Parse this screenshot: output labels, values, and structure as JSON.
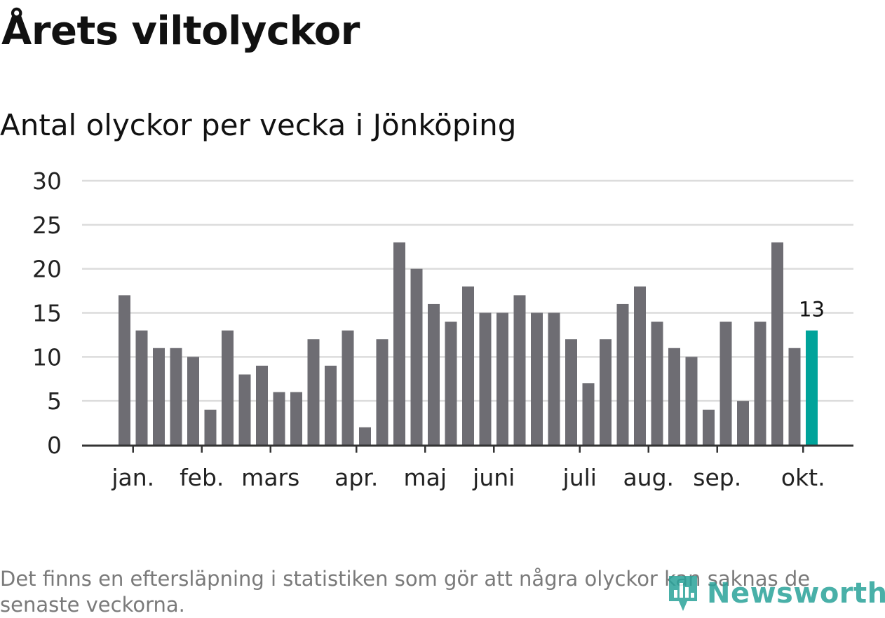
{
  "title": "Årets viltolyckor",
  "subtitle": "Antal olyckor per vecka i Jönköping",
  "footnote": "Det finns en eftersläpning i statistiken som gör att några olyckor kan saknas de senaste veckorna.",
  "logo_text": "Newsworthy",
  "colors": {
    "bar": "#6e6d73",
    "highlight": "#00a39a",
    "grid": "#dcdcdc",
    "axis": "#333333"
  },
  "chart_data": {
    "type": "bar",
    "title": "Antal olyckor per vecka i Jönköping",
    "xlabel": "",
    "ylabel": "",
    "ylim": [
      0,
      30
    ],
    "yticks": [
      0,
      5,
      10,
      15,
      20,
      25,
      30
    ],
    "month_labels": [
      {
        "label": "jan.",
        "week_index": 0.5
      },
      {
        "label": "feb.",
        "week_index": 4.5
      },
      {
        "label": "mars",
        "week_index": 8.5
      },
      {
        "label": "apr.",
        "week_index": 13.5
      },
      {
        "label": "maj",
        "week_index": 17.5
      },
      {
        "label": "juni",
        "week_index": 21.5
      },
      {
        "label": "juli",
        "week_index": 26.5
      },
      {
        "label": "aug.",
        "week_index": 30.5
      },
      {
        "label": "sep.",
        "week_index": 34.5
      },
      {
        "label": "okt.",
        "week_index": 39.5
      }
    ],
    "values": [
      17,
      13,
      11,
      11,
      10,
      4,
      13,
      8,
      9,
      6,
      6,
      12,
      9,
      13,
      2,
      12,
      23,
      20,
      16,
      14,
      18,
      15,
      15,
      17,
      15,
      15,
      12,
      7,
      12,
      16,
      18,
      14,
      11,
      10,
      4,
      14,
      5,
      14,
      23,
      11,
      13
    ],
    "highlight_index": 40,
    "highlight_label": "13"
  }
}
